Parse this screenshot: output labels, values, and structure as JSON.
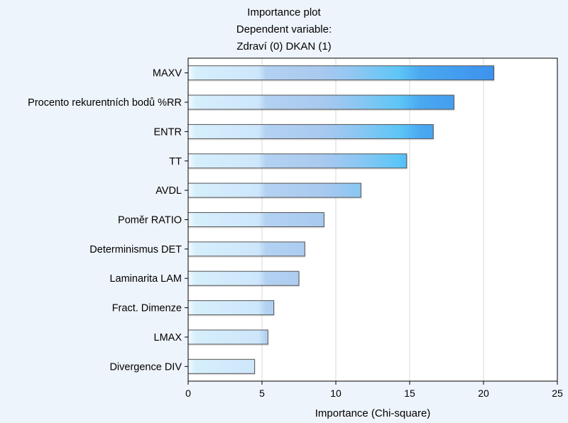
{
  "chart_data": {
    "type": "bar",
    "orientation": "horizontal",
    "title_lines": [
      "Importance plot",
      "Dependent variable:",
      "Zdraví (0) DKAN (1)"
    ],
    "xlabel": "Importance (Chi-square)",
    "ylabel": "",
    "xlim": [
      0,
      25
    ],
    "xticks": [
      0,
      5,
      10,
      15,
      20,
      25
    ],
    "grid": true,
    "categories": [
      "MAXV",
      "Procento rekurentních bodů %RR",
      "ENTR",
      "TT",
      "AVDL",
      "Poměr RATIO",
      "Determinismus DET",
      "Laminarita LAM",
      "Fract. Dimenze",
      "LMAX",
      "Divergence DIV"
    ],
    "values": [
      20.7,
      18.0,
      16.6,
      14.8,
      11.7,
      9.2,
      7.9,
      7.5,
      5.8,
      5.4,
      4.5
    ],
    "colors": {
      "background": "#eef4fb",
      "plot_area": "#ffffff",
      "bar_light": "#d6effc",
      "bar_mid": "#a9c9ef",
      "bar_bright": "#5ec6f7",
      "bar_dark": "#3c92ee",
      "bar_border": "#555555"
    }
  }
}
